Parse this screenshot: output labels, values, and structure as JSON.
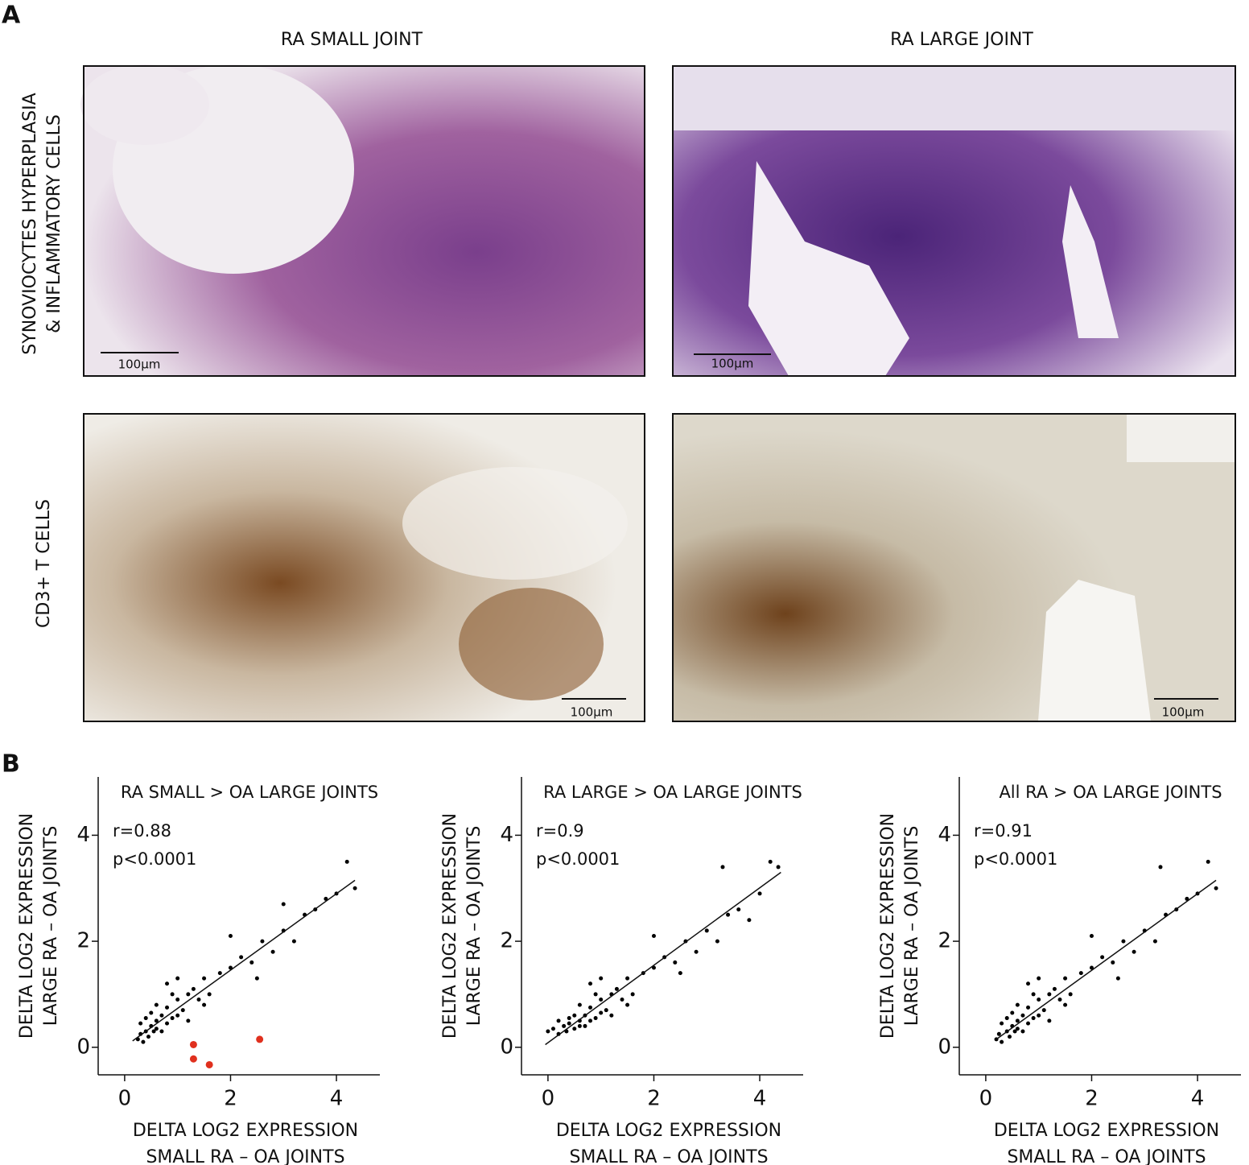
{
  "panel_a": {
    "label": "A",
    "columns": [
      "RA SMALL JOINT",
      "RA LARGE JOINT"
    ],
    "rows": [
      [
        "SYNOVIOCYTES HYPERPLASIA",
        "& INFLAMMATORY CELLS"
      ],
      [
        "CD3+ T CELLS"
      ]
    ],
    "scale_bars": [
      "100μm",
      "100μm",
      "100μm",
      "100μm"
    ]
  },
  "panel_b": {
    "label": "B"
  },
  "chart_data": [
    {
      "type": "scatter",
      "title": "RA SMALL > OA LARGE JOINTS",
      "annotations": [
        "r=0.88",
        "p<0.0001"
      ],
      "xlabel": [
        "DELTA LOG2 EXPRESSION",
        "SMALL RA – OA JOINTS"
      ],
      "ylabel": [
        "DELTA LOG2 EXPRESSION",
        "LARGE RA – OA JOINTS"
      ],
      "xlim": [
        -0.5,
        4.82
      ],
      "ylim": [
        -0.52,
        5.1
      ],
      "xticks": [
        0,
        2,
        4
      ],
      "yticks": [
        0,
        2,
        4
      ],
      "series": [
        {
          "color": "#000000",
          "x": [
            0.25,
            0.3,
            0.35,
            0.4,
            0.45,
            0.5,
            0.55,
            0.6,
            0.3,
            0.4,
            0.5,
            0.6,
            0.7,
            0.8,
            0.9,
            1.0,
            1.1,
            1.2,
            0.7,
            0.8,
            0.9,
            1.0,
            1.3,
            1.4,
            1.5,
            1.6,
            1.8,
            2.0,
            2.2,
            2.4,
            2.6,
            2.8,
            3.0,
            3.2,
            3.4,
            3.6,
            3.8,
            4.0,
            4.2,
            4.35,
            1.0,
            1.2,
            1.5,
            2.0,
            2.5,
            3.0,
            0.6,
            0.8
          ],
          "values": [
            0.15,
            0.25,
            0.1,
            0.3,
            0.2,
            0.4,
            0.3,
            0.5,
            0.45,
            0.55,
            0.65,
            0.35,
            0.6,
            0.75,
            0.55,
            0.9,
            0.7,
            1.0,
            0.3,
            0.45,
            1.0,
            0.6,
            1.1,
            0.9,
            1.3,
            1.0,
            1.4,
            1.5,
            1.7,
            1.6,
            2.0,
            1.8,
            2.2,
            2.0,
            2.5,
            2.6,
            2.8,
            2.9,
            3.5,
            3.0,
            1.3,
            0.5,
            0.8,
            2.1,
            1.3,
            2.7,
            0.8,
            1.2
          ]
        },
        {
          "color": "#e0301e",
          "x": [
            1.3,
            1.3,
            1.6,
            2.55
          ],
          "values": [
            0.05,
            -0.22,
            -0.33,
            0.15
          ]
        }
      ],
      "fit": {
        "x": [
          0.15,
          4.35
        ],
        "y": [
          0.12,
          3.15
        ]
      }
    },
    {
      "type": "scatter",
      "title": "RA LARGE > OA LARGE JOINTS",
      "annotations": [
        "r=0.9",
        "p<0.0001"
      ],
      "xlabel": [
        "DELTA LOG2 EXPRESSION",
        "SMALL RA – OA JOINTS"
      ],
      "ylabel": [
        "DELTA LOG2 EXPRESSION",
        "LARGE RA – OA JOINTS"
      ],
      "xlim": [
        -0.5,
        4.82
      ],
      "ylim": [
        -0.52,
        5.1
      ],
      "xticks": [
        0,
        2,
        4
      ],
      "yticks": [
        0,
        2,
        4
      ],
      "series": [
        {
          "color": "#000000",
          "x": [
            0.0,
            0.1,
            0.2,
            0.3,
            0.35,
            0.4,
            0.5,
            0.6,
            0.2,
            0.4,
            0.5,
            0.6,
            0.7,
            0.8,
            0.9,
            1.0,
            1.1,
            1.2,
            0.7,
            0.8,
            0.9,
            1.0,
            1.3,
            1.4,
            1.5,
            1.6,
            1.8,
            2.0,
            2.2,
            2.4,
            2.6,
            2.8,
            3.0,
            3.2,
            3.4,
            3.6,
            3.8,
            4.0,
            4.2,
            4.35,
            1.0,
            1.2,
            1.5,
            2.0,
            2.5,
            3.3,
            0.6,
            0.8
          ],
          "values": [
            0.3,
            0.35,
            0.25,
            0.4,
            0.3,
            0.45,
            0.35,
            0.5,
            0.5,
            0.55,
            0.6,
            0.4,
            0.6,
            0.75,
            0.55,
            0.9,
            0.7,
            1.0,
            0.4,
            0.5,
            1.0,
            0.65,
            1.1,
            0.9,
            1.3,
            1.0,
            1.4,
            1.5,
            1.7,
            1.6,
            2.0,
            1.8,
            2.2,
            2.0,
            2.5,
            2.6,
            2.4,
            2.9,
            3.5,
            3.4,
            1.3,
            0.6,
            0.8,
            2.1,
            1.4,
            3.4,
            0.8,
            1.2
          ]
        }
      ],
      "fit": {
        "x": [
          -0.05,
          4.4
        ],
        "y": [
          0.05,
          3.3
        ]
      }
    },
    {
      "type": "scatter",
      "title": "All RA > OA LARGE JOINTS",
      "annotations": [
        "r=0.91",
        "p<0.0001"
      ],
      "xlabel": [
        "DELTA LOG2 EXPRESSION",
        "SMALL RA – OA JOINTS"
      ],
      "ylabel": [
        "DELTA LOG2 EXPRESSION",
        "LARGE RA – OA JOINTS"
      ],
      "xlim": [
        -0.5,
        4.82
      ],
      "ylim": [
        -0.52,
        5.1
      ],
      "xticks": [
        0,
        2,
        4
      ],
      "yticks": [
        0,
        2,
        4
      ],
      "series": [
        {
          "color": "#000000",
          "x": [
            0.2,
            0.25,
            0.3,
            0.4,
            0.45,
            0.5,
            0.55,
            0.6,
            0.3,
            0.4,
            0.5,
            0.6,
            0.7,
            0.8,
            0.9,
            1.0,
            1.1,
            1.2,
            0.7,
            0.8,
            0.9,
            1.0,
            1.3,
            1.4,
            1.5,
            1.6,
            1.8,
            2.0,
            2.2,
            2.4,
            2.6,
            2.8,
            3.0,
            3.2,
            3.4,
            3.6,
            3.8,
            4.0,
            4.2,
            4.35,
            1.0,
            1.2,
            1.5,
            2.0,
            2.5,
            3.3,
            0.6,
            0.8
          ],
          "values": [
            0.15,
            0.25,
            0.1,
            0.3,
            0.2,
            0.4,
            0.3,
            0.5,
            0.45,
            0.55,
            0.65,
            0.35,
            0.6,
            0.75,
            0.55,
            0.9,
            0.7,
            1.0,
            0.3,
            0.45,
            1.0,
            0.6,
            1.1,
            0.9,
            1.3,
            1.0,
            1.4,
            1.5,
            1.7,
            1.6,
            2.0,
            1.8,
            2.2,
            2.0,
            2.5,
            2.6,
            2.8,
            2.9,
            3.5,
            3.0,
            1.3,
            0.5,
            0.8,
            2.1,
            1.3,
            3.4,
            0.8,
            1.2
          ]
        }
      ],
      "fit": {
        "x": [
          0.2,
          4.35
        ],
        "y": [
          0.15,
          3.15
        ]
      }
    }
  ]
}
